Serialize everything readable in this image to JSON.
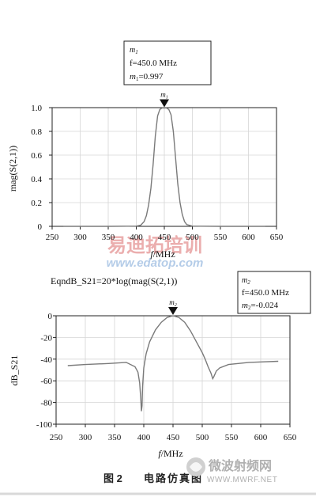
{
  "chart_data": [
    {
      "type": "line",
      "ylabel": "mag(S(2,1))",
      "xlabel_prefix": "f",
      "xlabel_unit": "/MHz",
      "xlim": [
        250,
        650
      ],
      "ylim": [
        0,
        1.0
      ],
      "xticks": [
        250,
        300,
        350,
        400,
        450,
        500,
        550,
        600,
        650
      ],
      "yticks": [
        0,
        0.2,
        0.4,
        0.6,
        0.8,
        1.0
      ],
      "ytick_labels": [
        "0",
        "0.2",
        "0.4",
        "0.6",
        "0.8",
        "1.0"
      ],
      "grid": true,
      "series": [
        {
          "x": [
            270,
            350,
            400,
            408,
            414,
            418,
            422,
            426,
            430,
            434,
            438,
            442,
            446,
            450,
            454,
            458,
            462,
            466,
            470,
            474,
            478,
            482,
            486,
            490,
            500,
            550,
            630
          ],
          "y": [
            0,
            0,
            0.002,
            0.01,
            0.04,
            0.09,
            0.18,
            0.32,
            0.52,
            0.76,
            0.93,
            0.985,
            0.997,
            0.997,
            0.997,
            0.985,
            0.94,
            0.8,
            0.58,
            0.36,
            0.2,
            0.1,
            0.04,
            0.015,
            0.002,
            0,
            0
          ]
        }
      ],
      "marker": {
        "name": "m",
        "sub": "1",
        "x": 450,
        "y": 0.997,
        "box_line1_name": "m",
        "box_line1_sub": "1",
        "box_line2": "f=450.0  MHz",
        "box_line3_name": "m",
        "box_line3_sub": "1",
        "box_line3_value": "=0.997"
      }
    },
    {
      "type": "line",
      "title": "EqndB_S21=20*log(mag(S(2,1))",
      "ylabel": "dB_S21",
      "xlabel_prefix": "f",
      "xlabel_unit": "/MHz",
      "xlim": [
        250,
        650
      ],
      "ylim": [
        -100,
        0
      ],
      "xticks": [
        250,
        300,
        350,
        400,
        450,
        500,
        550,
        600,
        650
      ],
      "yticks": [
        0,
        -20,
        -40,
        -60,
        -80,
        -100
      ],
      "ytick_labels": [
        "0",
        "-20",
        "-40",
        "-60",
        "-80",
        "-100"
      ],
      "grid": true,
      "series": [
        {
          "x": [
            270,
            300,
            340,
            370,
            385,
            390,
            393,
            395,
            396,
            397,
            398,
            400,
            404,
            410,
            420,
            430,
            440,
            450,
            460,
            470,
            480,
            490,
            500,
            505,
            510,
            515,
            518,
            520,
            524,
            530,
            545,
            580,
            630
          ],
          "y": [
            -46,
            -45,
            -44,
            -43,
            -47,
            -52,
            -62,
            -78,
            -88,
            -83,
            -65,
            -48,
            -35,
            -24,
            -13,
            -6,
            -1.5,
            -0.024,
            -1.5,
            -6,
            -14,
            -24,
            -34,
            -40,
            -47,
            -53,
            -58,
            -56,
            -51,
            -48,
            -45,
            -43,
            -42
          ]
        }
      ],
      "marker": {
        "name": "m",
        "sub": "2",
        "x": 450,
        "y": -0.024,
        "box_line1_name": "m",
        "box_line1_sub": "2",
        "box_line2": "f=450.0  MHz",
        "box_line3_name": "m",
        "box_line3_sub": "2",
        "box_line3_value": "=-0.024"
      }
    }
  ],
  "caption": {
    "figure": "图 2",
    "text": "电路仿真图"
  },
  "watermarks": {
    "center_cn": "易迪拓培训",
    "center_url": "www.edatop.com",
    "corner_cn": "微波射频网",
    "corner_url": "WWW.MWRF.NET"
  },
  "colors": {
    "curve": "#7a7a7a",
    "grid": "#d6d6d6",
    "axis": "#222222",
    "watermark_red": "#e8a0a0",
    "watermark_blue": "#a8c4e4",
    "corner_gray": "#b0b0b0"
  }
}
